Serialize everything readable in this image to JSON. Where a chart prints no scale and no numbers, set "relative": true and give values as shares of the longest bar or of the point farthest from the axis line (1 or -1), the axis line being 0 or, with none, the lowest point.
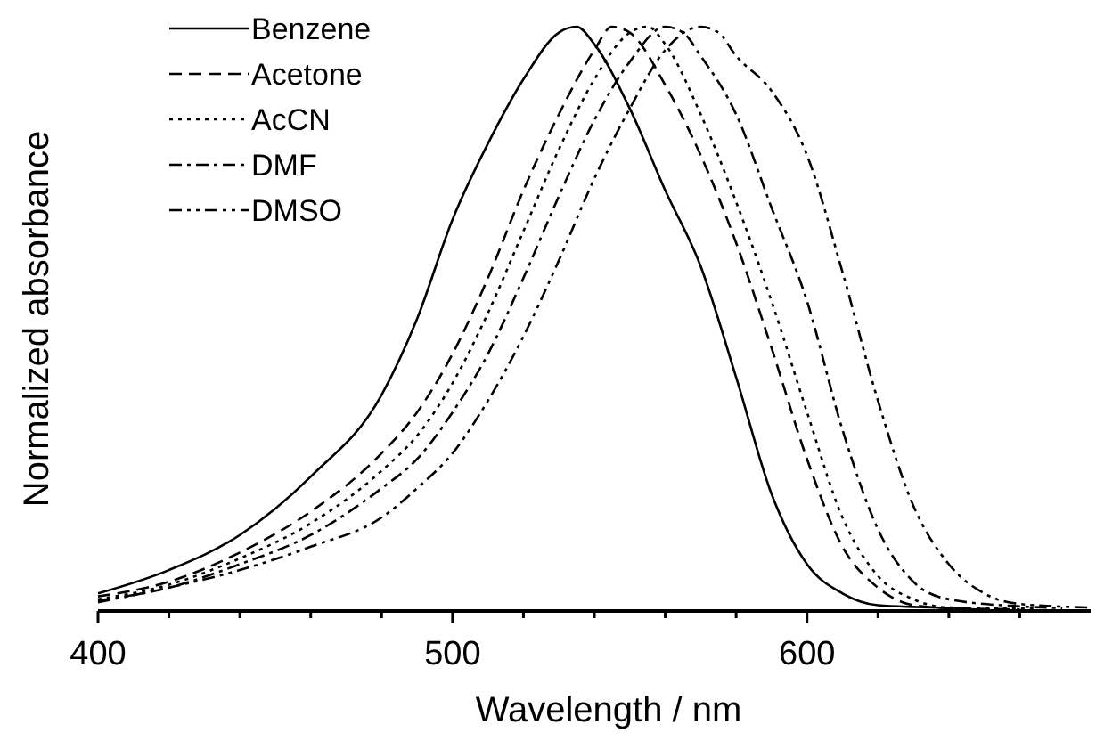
{
  "chart_data": {
    "type": "line",
    "relative": true,
    "xlabel": "Wavelength / nm",
    "ylabel": "Normalized absorbance",
    "xlim": [
      400,
      680
    ],
    "xticks": [
      400,
      {
        "value": 420,
        "label": null
      },
      {
        "value": 440,
        "label": null
      },
      {
        "value": 460,
        "label": null
      },
      {
        "value": 480,
        "label": null
      },
      500,
      {
        "value": 520,
        "label": null
      },
      {
        "value": 540,
        "label": null
      },
      {
        "value": 560,
        "label": null
      },
      {
        "value": 580,
        "label": null
      },
      600,
      {
        "value": 620,
        "label": null
      },
      {
        "value": 640,
        "label": null
      },
      {
        "value": 660,
        "label": null
      }
    ],
    "tick_labels": "x",
    "legend": "top left",
    "grid": false,
    "marker": "none",
    "series": [
      {
        "name": "Benzene",
        "color": "#000000",
        "line_style": "solid",
        "x": [
          400,
          420,
          440,
          460,
          480,
          490,
          500,
          510,
          520,
          530,
          535,
          540,
          550,
          560,
          570,
          580,
          590,
          600,
          610,
          620,
          640,
          650
        ],
        "values": [
          0.03,
          0.07,
          0.13,
          0.23,
          0.37,
          0.5,
          0.67,
          0.8,
          0.91,
          0.99,
          1,
          0.97,
          0.86,
          0.72,
          0.59,
          0.4,
          0.2,
          0.08,
          0.03,
          0.01,
          0.005,
          0.002
        ]
      },
      {
        "name": "Acetone",
        "color": "#000000",
        "line_style": "dashed",
        "x": [
          400,
          420,
          440,
          460,
          480,
          490,
          500,
          510,
          520,
          530,
          540,
          545,
          550,
          560,
          570,
          580,
          590,
          600,
          610,
          620,
          630,
          640,
          660
        ],
        "values": [
          0.025,
          0.05,
          0.1,
          0.17,
          0.27,
          0.34,
          0.44,
          0.57,
          0.72,
          0.85,
          0.96,
          1,
          0.99,
          0.9,
          0.78,
          0.63,
          0.45,
          0.26,
          0.11,
          0.04,
          0.01,
          0.005,
          0.003
        ]
      },
      {
        "name": "AcCN",
        "color": "#000000",
        "line_style": "dotted",
        "x": [
          400,
          420,
          440,
          460,
          480,
          490,
          500,
          510,
          520,
          530,
          540,
          550,
          555,
          560,
          570,
          580,
          590,
          600,
          610,
          620,
          630,
          640,
          665
        ],
        "values": [
          0.02,
          0.045,
          0.09,
          0.15,
          0.24,
          0.3,
          0.39,
          0.51,
          0.65,
          0.79,
          0.91,
          0.99,
          1,
          0.97,
          0.85,
          0.7,
          0.53,
          0.34,
          0.16,
          0.06,
          0.02,
          0.006,
          0.004
        ]
      },
      {
        "name": "DMF",
        "color": "#000000",
        "line_style": "dashdot",
        "x": [
          400,
          420,
          440,
          460,
          480,
          490,
          500,
          510,
          520,
          530,
          540,
          550,
          560,
          565,
          570,
          580,
          590,
          600,
          610,
          620,
          630,
          640,
          660,
          672
        ],
        "values": [
          0.018,
          0.04,
          0.08,
          0.13,
          0.21,
          0.26,
          0.34,
          0.44,
          0.57,
          0.71,
          0.84,
          0.94,
          1,
          0.99,
          0.95,
          0.85,
          0.69,
          0.53,
          0.31,
          0.14,
          0.05,
          0.02,
          0.008,
          0.005
        ]
      },
      {
        "name": "DMSO",
        "color": "#000000",
        "line_style": "dashdotdot",
        "x": [
          400,
          420,
          440,
          460,
          480,
          490,
          500,
          510,
          520,
          530,
          540,
          550,
          560,
          570,
          575,
          580,
          590,
          600,
          610,
          620,
          630,
          640,
          650,
          660,
          680
        ],
        "values": [
          0.015,
          0.04,
          0.07,
          0.11,
          0.16,
          0.21,
          0.27,
          0.36,
          0.47,
          0.6,
          0.74,
          0.86,
          0.96,
          1,
          0.99,
          0.95,
          0.89,
          0.78,
          0.58,
          0.36,
          0.18,
          0.08,
          0.03,
          0.012,
          0.006
        ]
      }
    ]
  }
}
